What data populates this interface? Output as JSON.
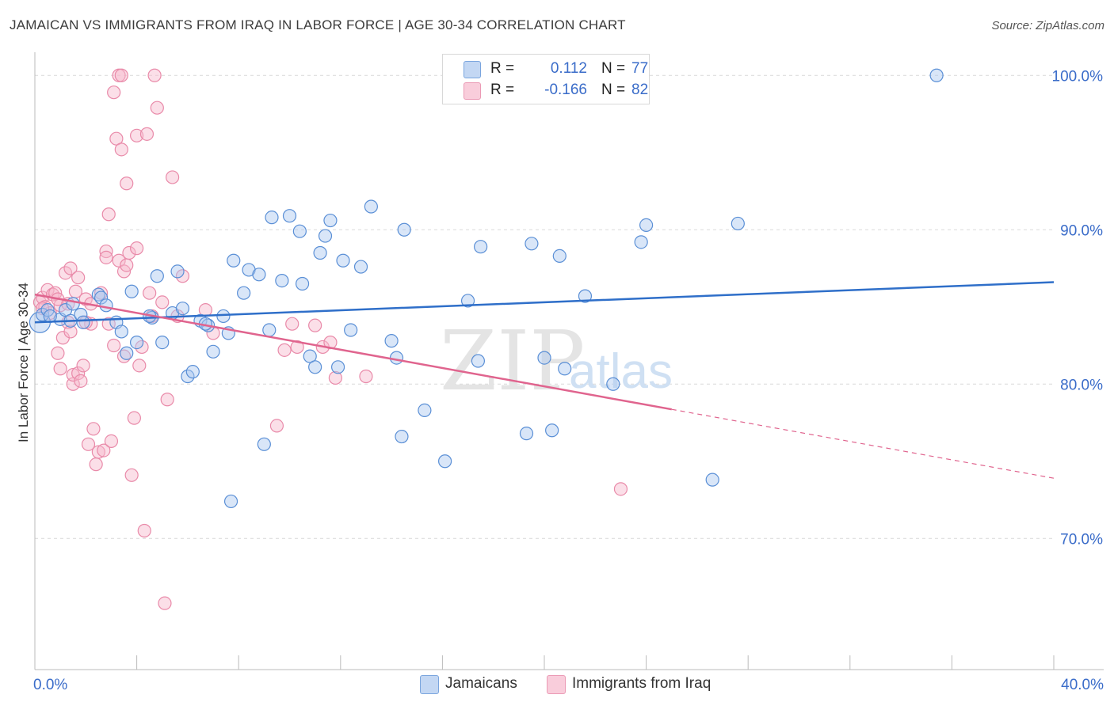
{
  "title": "JAMAICAN VS IMMIGRANTS FROM IRAQ IN LABOR FORCE | AGE 30-34 CORRELATION CHART",
  "source": "Source: ZipAtlas.com",
  "watermark": {
    "zip": "ZIP",
    "atlas": "atlas"
  },
  "legend": {
    "rows": [
      {
        "r_label": "R =",
        "r_value": "0.112",
        "n_label": "N =",
        "n_value": "77"
      },
      {
        "r_label": "R =",
        "r_value": "-0.166",
        "n_label": "N =",
        "n_value": "82"
      }
    ]
  },
  "bottom_legend": [
    "Jamaicans",
    "Immigrants from Iraq"
  ],
  "colors": {
    "blue_fill": "#aac8f0",
    "blue_stroke": "#5a8fd6",
    "blue_line": "#2f6fc9",
    "pink_fill": "#f6b8cc",
    "pink_stroke": "#e98aa9",
    "pink_line": "#e0648e",
    "tick_label": "#3a6cc9",
    "grid": "#d9d9d9"
  },
  "chart_data": {
    "type": "scatter",
    "title": "JAMAICAN VS IMMIGRANTS FROM IRAQ IN LABOR FORCE | AGE 30-34 CORRELATION CHART",
    "xlabel": "",
    "ylabel": "In Labor Force | Age 30-34",
    "xlim": [
      0,
      40
    ],
    "ylim": [
      61.5,
      101.5
    ],
    "x_tick_labels": [
      {
        "value": 0,
        "label": "0.0%"
      },
      {
        "value": 40,
        "label": "40.0%"
      }
    ],
    "y_tick_labels": [
      {
        "value": 100,
        "label": "100.0%"
      },
      {
        "value": 90,
        "label": "90.0%"
      },
      {
        "value": 80,
        "label": "80.0%"
      },
      {
        "value": 70,
        "label": "70.0%"
      }
    ],
    "series": [
      {
        "name": "Jamaicans",
        "r": 0.112,
        "n": 77,
        "trend": {
          "x": [
            0,
            40
          ],
          "y": [
            84.0,
            86.6
          ]
        },
        "points": [
          [
            0.2,
            84.0
          ],
          [
            0.3,
            84.5
          ],
          [
            0.5,
            84.8
          ],
          [
            1.0,
            84.2
          ],
          [
            1.2,
            84.8
          ],
          [
            1.4,
            84.1
          ],
          [
            1.5,
            85.2
          ],
          [
            1.8,
            84.5
          ],
          [
            2.5,
            85.8
          ],
          [
            2.6,
            85.6
          ],
          [
            2.8,
            85.1
          ],
          [
            3.2,
            84.0
          ],
          [
            3.4,
            83.4
          ],
          [
            3.6,
            82.0
          ],
          [
            3.8,
            86.0
          ],
          [
            4.0,
            82.7
          ],
          [
            4.6,
            84.3
          ],
          [
            4.8,
            87.0
          ],
          [
            5.0,
            82.7
          ],
          [
            5.4,
            84.6
          ],
          [
            5.6,
            87.3
          ],
          [
            5.8,
            84.9
          ],
          [
            6.0,
            80.5
          ],
          [
            6.2,
            80.8
          ],
          [
            6.5,
            84.1
          ],
          [
            6.8,
            83.8
          ],
          [
            7.0,
            82.1
          ],
          [
            7.4,
            84.4
          ],
          [
            7.6,
            83.3
          ],
          [
            7.7,
            72.4
          ],
          [
            7.8,
            88.0
          ],
          [
            8.2,
            85.9
          ],
          [
            8.4,
            87.4
          ],
          [
            8.8,
            87.1
          ],
          [
            9.0,
            76.1
          ],
          [
            9.2,
            83.5
          ],
          [
            9.3,
            90.8
          ],
          [
            9.7,
            86.7
          ],
          [
            10.0,
            90.9
          ],
          [
            10.4,
            89.9
          ],
          [
            10.5,
            86.5
          ],
          [
            10.8,
            81.8
          ],
          [
            11.0,
            81.1
          ],
          [
            11.2,
            88.5
          ],
          [
            11.4,
            89.6
          ],
          [
            11.6,
            90.6
          ],
          [
            11.9,
            81.1
          ],
          [
            12.1,
            88.0
          ],
          [
            12.4,
            83.5
          ],
          [
            12.8,
            87.6
          ],
          [
            13.2,
            91.5
          ],
          [
            14.0,
            82.8
          ],
          [
            14.2,
            81.7
          ],
          [
            14.4,
            76.6
          ],
          [
            14.5,
            90.0
          ],
          [
            15.3,
            78.3
          ],
          [
            16.1,
            75.0
          ],
          [
            17.0,
            85.4
          ],
          [
            17.4,
            81.5
          ],
          [
            17.5,
            88.9
          ],
          [
            19.3,
            76.8
          ],
          [
            19.5,
            89.1
          ],
          [
            20.0,
            81.7
          ],
          [
            20.3,
            77.0
          ],
          [
            20.6,
            88.3
          ],
          [
            20.8,
            81.0
          ],
          [
            21.6,
            85.7
          ],
          [
            22.7,
            80.0
          ],
          [
            23.8,
            89.2
          ],
          [
            24.0,
            90.3
          ],
          [
            26.6,
            73.8
          ],
          [
            27.6,
            90.4
          ],
          [
            35.4,
            100.0
          ],
          [
            0.6,
            84.4
          ],
          [
            1.9,
            84.0
          ],
          [
            4.5,
            84.4
          ],
          [
            6.7,
            83.9
          ]
        ]
      },
      {
        "name": "Immigrants from Iraq",
        "r": -0.166,
        "n": 82,
        "trend": {
          "x": [
            0,
            40
          ],
          "y": [
            85.8,
            73.9
          ]
        },
        "trend_solid_until_x": 25.0,
        "points": [
          [
            0.2,
            85.3
          ],
          [
            0.3,
            85.6
          ],
          [
            0.4,
            85.0
          ],
          [
            0.5,
            86.1
          ],
          [
            0.6,
            84.6
          ],
          [
            0.7,
            85.8
          ],
          [
            0.8,
            85.9
          ],
          [
            0.9,
            82.0
          ],
          [
            1.0,
            85.1
          ],
          [
            1.0,
            81.0
          ],
          [
            1.1,
            83.0
          ],
          [
            1.2,
            87.2
          ],
          [
            1.3,
            84.0
          ],
          [
            1.4,
            83.4
          ],
          [
            1.4,
            87.5
          ],
          [
            1.5,
            80.0
          ],
          [
            1.5,
            80.6
          ],
          [
            1.6,
            86.0
          ],
          [
            1.7,
            80.7
          ],
          [
            1.7,
            86.9
          ],
          [
            1.8,
            80.2
          ],
          [
            1.9,
            81.2
          ],
          [
            2.0,
            85.5
          ],
          [
            2.1,
            76.1
          ],
          [
            2.2,
            83.9
          ],
          [
            2.2,
            85.2
          ],
          [
            2.3,
            77.1
          ],
          [
            2.4,
            74.8
          ],
          [
            2.5,
            75.6
          ],
          [
            2.6,
            85.9
          ],
          [
            2.7,
            75.7
          ],
          [
            2.8,
            88.6
          ],
          [
            2.8,
            88.2
          ],
          [
            2.9,
            83.9
          ],
          [
            2.9,
            91.0
          ],
          [
            3.0,
            76.3
          ],
          [
            3.1,
            82.5
          ],
          [
            3.1,
            98.9
          ],
          [
            3.2,
            95.9
          ],
          [
            3.3,
            100.0
          ],
          [
            3.3,
            88.0
          ],
          [
            3.4,
            95.2
          ],
          [
            3.4,
            100.0
          ],
          [
            3.5,
            87.3
          ],
          [
            3.5,
            81.8
          ],
          [
            3.6,
            93.0
          ],
          [
            3.6,
            87.7
          ],
          [
            3.7,
            88.5
          ],
          [
            3.8,
            74.1
          ],
          [
            3.9,
            77.8
          ],
          [
            4.0,
            88.8
          ],
          [
            4.0,
            96.1
          ],
          [
            4.1,
            81.2
          ],
          [
            4.2,
            82.4
          ],
          [
            4.3,
            70.5
          ],
          [
            4.4,
            96.2
          ],
          [
            4.5,
            85.9
          ],
          [
            4.6,
            84.4
          ],
          [
            4.7,
            100.0
          ],
          [
            4.8,
            97.9
          ],
          [
            5.0,
            85.3
          ],
          [
            5.1,
            65.8
          ],
          [
            5.2,
            79.0
          ],
          [
            5.4,
            93.4
          ],
          [
            5.6,
            84.4
          ],
          [
            5.8,
            87.0
          ],
          [
            6.7,
            84.8
          ],
          [
            7.0,
            83.3
          ],
          [
            9.5,
            77.3
          ],
          [
            9.8,
            82.2
          ],
          [
            10.1,
            83.9
          ],
          [
            10.3,
            82.4
          ],
          [
            11.0,
            83.8
          ],
          [
            11.3,
            82.4
          ],
          [
            11.6,
            82.7
          ],
          [
            11.8,
            80.4
          ],
          [
            13.0,
            80.5
          ],
          [
            23.0,
            73.2
          ],
          [
            0.9,
            85.5
          ],
          [
            1.3,
            85.2
          ],
          [
            2.0,
            84.0
          ],
          [
            0.3,
            84.9
          ]
        ]
      }
    ]
  }
}
